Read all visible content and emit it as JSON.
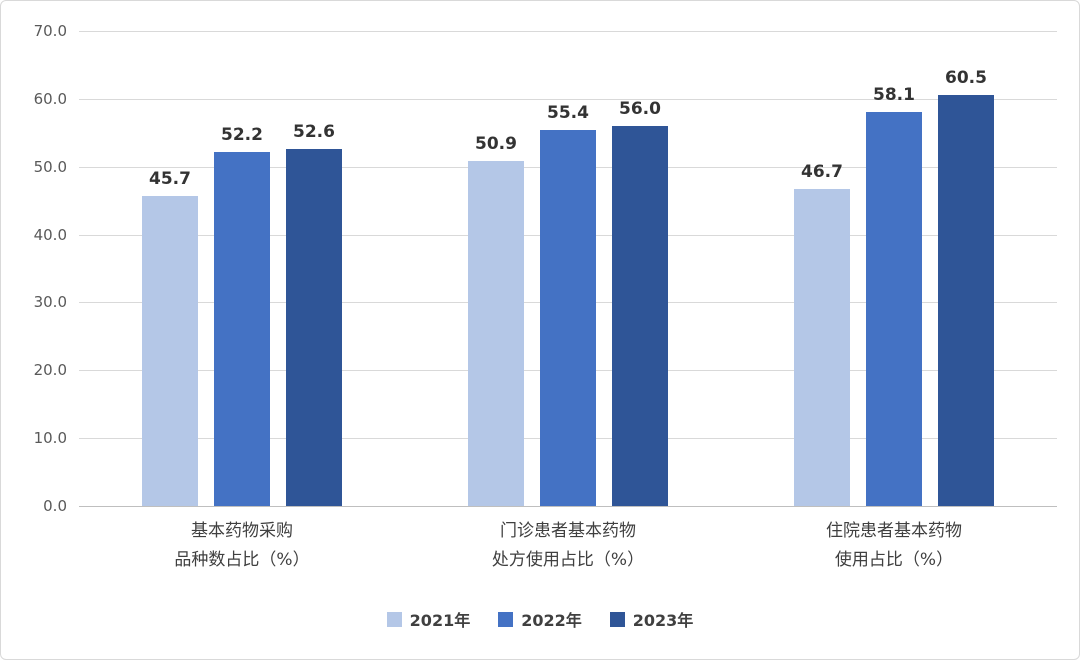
{
  "chart_data": {
    "type": "bar",
    "categories": [
      "基本药物采购\n品种数占比（%）",
      "门诊患者基本药物\n处方使用占比（%）",
      "住院患者基本药物\n使用占比（%）"
    ],
    "series": [
      {
        "name": "2021年",
        "color": "#b4c7e7",
        "values": [
          45.7,
          50.9,
          46.7
        ]
      },
      {
        "name": "2022年",
        "color": "#4472c4",
        "values": [
          52.2,
          55.4,
          58.1
        ]
      },
      {
        "name": "2023年",
        "color": "#2f5597",
        "values": [
          52.6,
          56.0,
          60.5
        ]
      }
    ],
    "title": "",
    "xlabel": "",
    "ylabel": "",
    "ylim": [
      0,
      70
    ],
    "ytick_step": 10,
    "yticks": [
      "0.0",
      "10.0",
      "20.0",
      "30.0",
      "40.0",
      "50.0",
      "60.0",
      "70.0"
    ],
    "grid": true,
    "legend_position": "bottom",
    "colors": {
      "gridline": "#d9d9d9",
      "axis": "#bfbfbf",
      "tick_text": "#595959",
      "label_text": "#333333",
      "category_text": "#404040"
    }
  }
}
